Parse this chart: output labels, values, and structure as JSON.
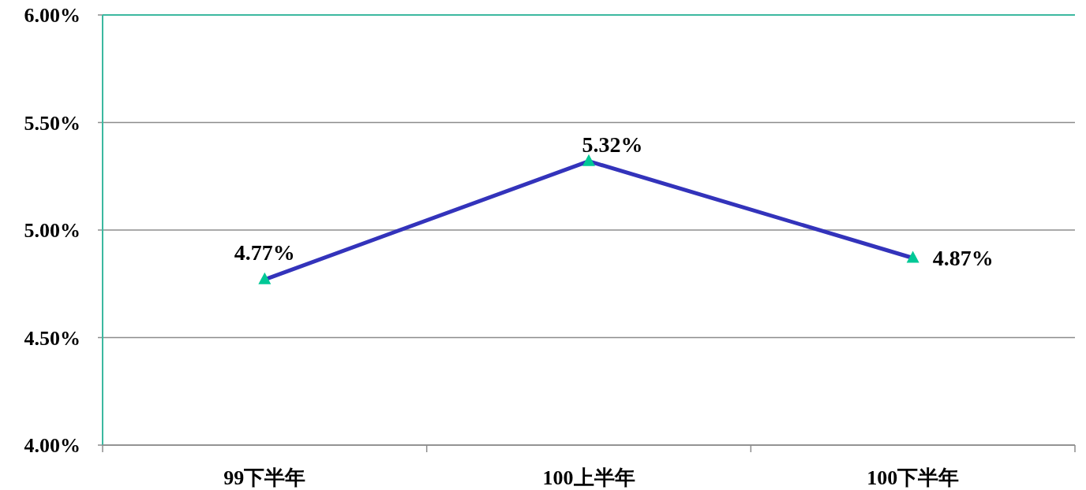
{
  "chart_data": {
    "type": "line",
    "categories": [
      "99下半年",
      "100上半年",
      "100下半年"
    ],
    "series": [
      {
        "color": "#3333bb",
        "values": [
          4.77,
          5.32,
          4.87
        ],
        "value_labels": [
          "4.77%",
          "5.32%",
          "4.87%"
        ]
      }
    ],
    "ylim": [
      4,
      6
    ],
    "yticks": [
      {
        "value": 4,
        "label": "4.00%"
      },
      {
        "value": 4.5,
        "label": "4.50%"
      },
      {
        "value": 5,
        "label": "5.00%"
      },
      {
        "value": 5.5,
        "label": "5.50%"
      },
      {
        "value": 6,
        "label": "6.00%"
      }
    ],
    "grid": "y",
    "marker": "triangle",
    "line_style": "solid"
  }
}
